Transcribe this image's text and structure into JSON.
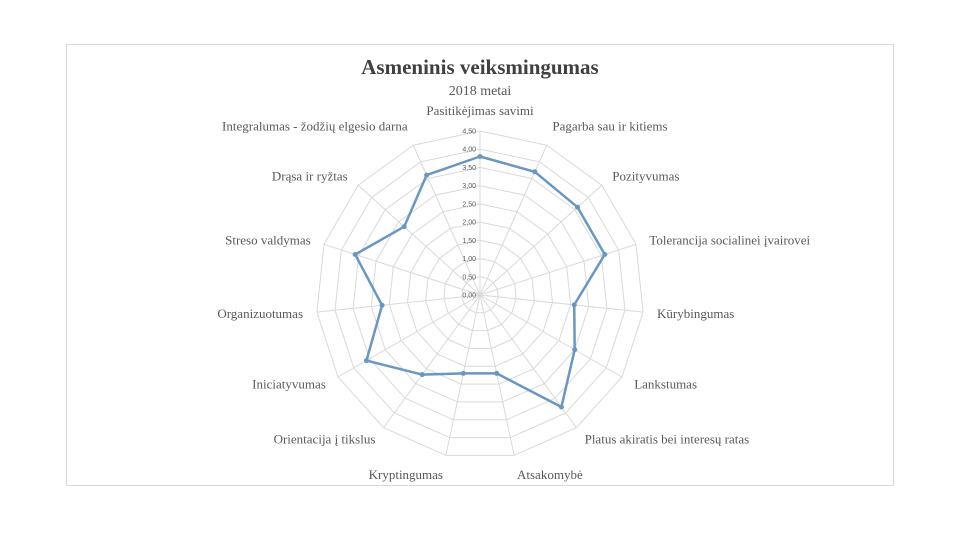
{
  "chart_data": {
    "type": "radar",
    "title": "Asmeninis veiksmingumas",
    "subtitle": "2018 metai",
    "categories": [
      "Pasitikėjimas savimi",
      "Pagarba sau ir kitiems",
      "Pozityvumas",
      "Tolerancija socialinei įvairovei",
      "Kūrybingumas",
      "Lankstumas",
      "Platus akiratis bei interesų ratas",
      "Atsakomybė",
      "Kryptingumas",
      "Orientacija į tikslus",
      "Iniciatyvumas",
      "Organizuotumas",
      "Streso valdymas",
      "Drąsa ir ryžtas",
      "Integralumas - žodžių elgesio darna"
    ],
    "series": [
      {
        "values": [
          3.8,
          3.7,
          3.6,
          3.6,
          2.6,
          3.0,
          3.8,
          2.2,
          2.2,
          2.7,
          3.6,
          2.7,
          3.6,
          2.8,
          3.6
        ]
      }
    ],
    "rlim": [
      0,
      4.5
    ],
    "ticks": [
      "0,00",
      "0,50",
      "1,00",
      "1,50",
      "2,00",
      "2,50",
      "3,00",
      "3,50",
      "4,00",
      "4,50"
    ],
    "grid": true,
    "legend": "none",
    "colors": {
      "series": "#6897c4",
      "grid": "#d9d9d9",
      "frame": "#d9d9d9"
    }
  }
}
